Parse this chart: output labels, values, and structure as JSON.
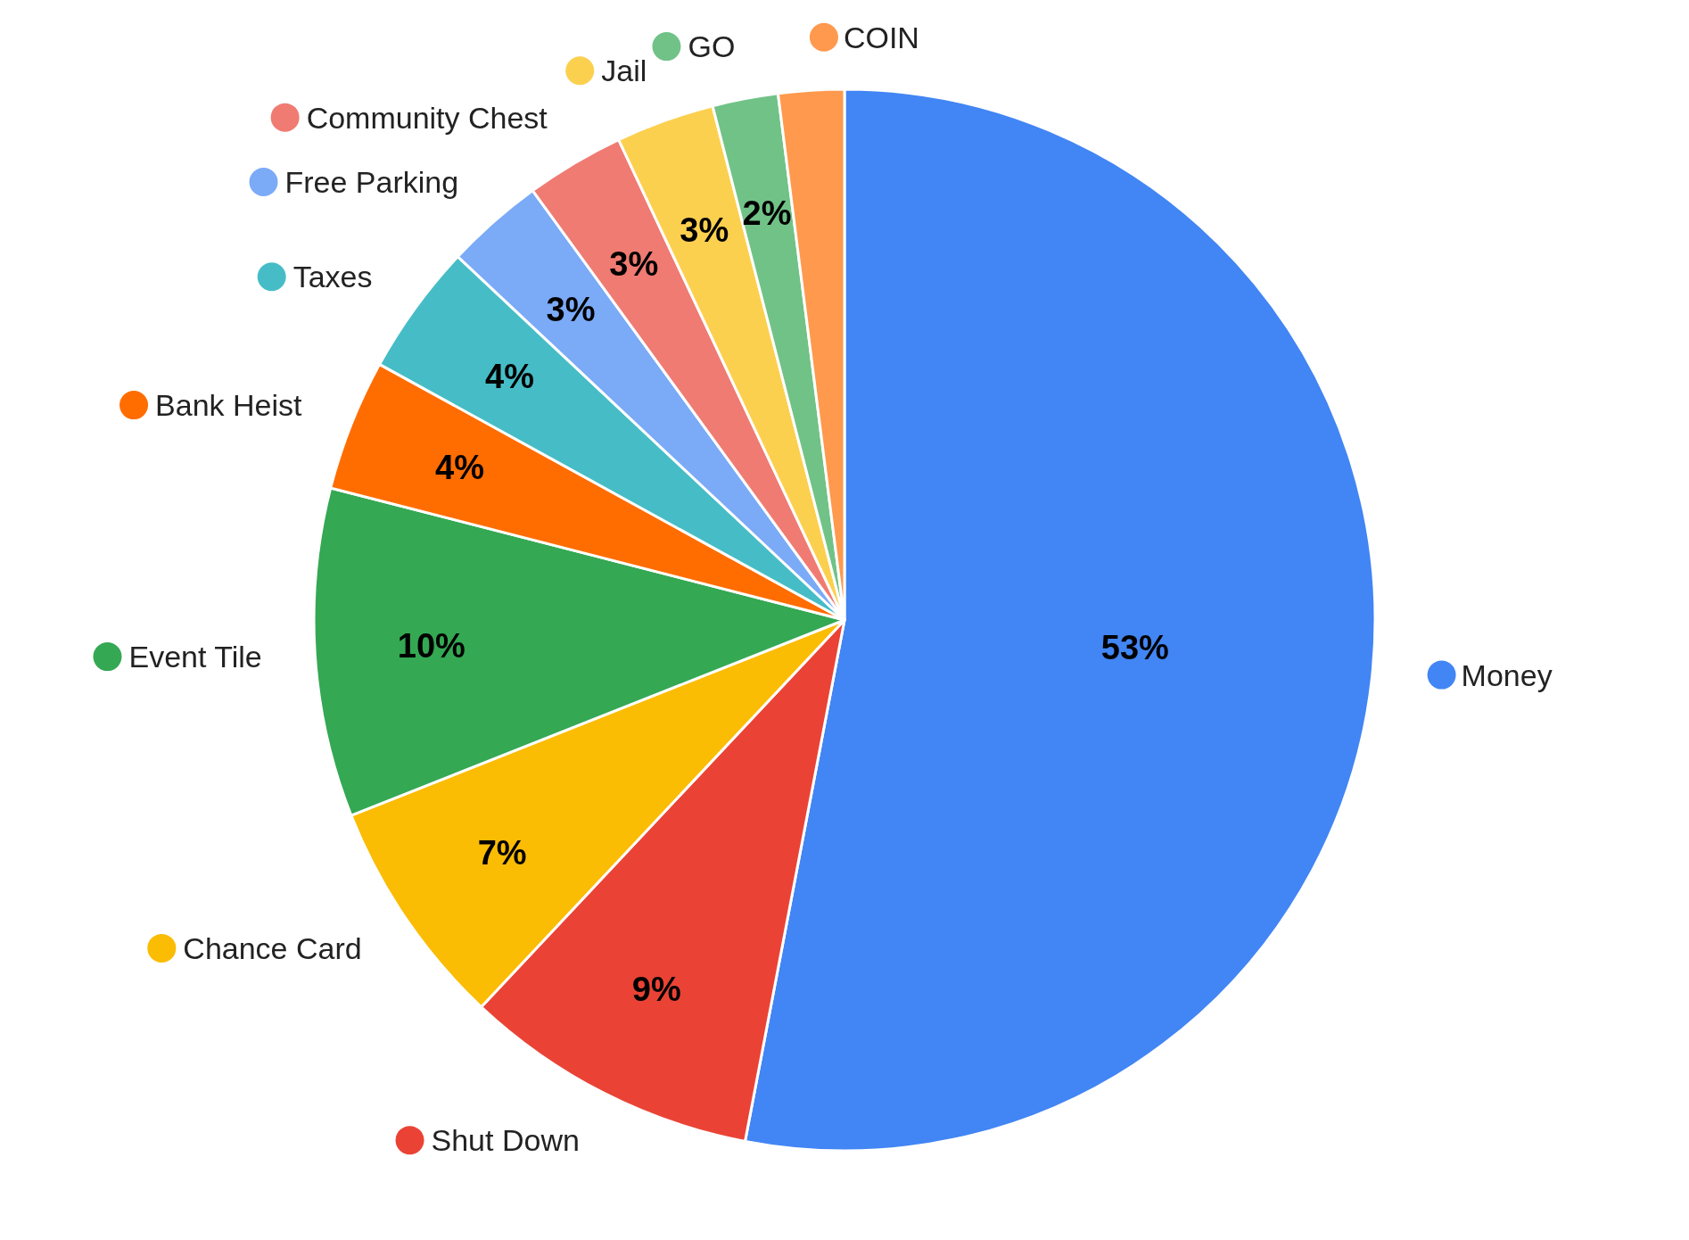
{
  "chart_data": {
    "type": "pie",
    "categories": [
      "Money",
      "Shut Down",
      "Chance Card",
      "Event Tile",
      "Bank Heist",
      "Taxes",
      "Free Parking",
      "Community Chest",
      "Jail",
      "GO",
      "COIN"
    ],
    "values": [
      53,
      9,
      7,
      10,
      4,
      4,
      3,
      3,
      3,
      2,
      2
    ],
    "value_labels": [
      "53%",
      "9%",
      "7%",
      "10%",
      "4%",
      "4%",
      "3%",
      "3%",
      "3%",
      "2%",
      null
    ],
    "colors": [
      "#4285f4",
      "#ea4335",
      "#fbbc04",
      "#34a853",
      "#ff6d01",
      "#46bdc6",
      "#7baaf7",
      "#f07b72",
      "#fcd04f",
      "#71c287",
      "#ff994d"
    ],
    "legend": "left"
  }
}
